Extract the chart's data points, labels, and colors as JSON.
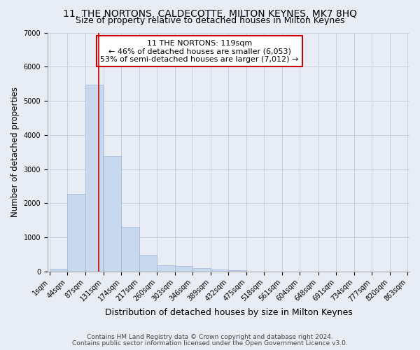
{
  "title": "11, THE NORTONS, CALDECOTTE, MILTON KEYNES, MK7 8HQ",
  "subtitle": "Size of property relative to detached houses in Milton Keynes",
  "xlabel": "Distribution of detached houses by size in Milton Keynes",
  "ylabel": "Number of detached properties",
  "footnote1": "Contains HM Land Registry data © Crown copyright and database right 2024.",
  "footnote2": "Contains public sector information licensed under the Open Government Licence v3.0.",
  "annotation_line1": "11 THE NORTONS: 119sqm",
  "annotation_line2": "← 46% of detached houses are smaller (6,053)",
  "annotation_line3": "53% of semi-detached houses are larger (7,012) →",
  "property_size": 119,
  "bin_edges": [
    1,
    44,
    87,
    131,
    174,
    217,
    260,
    303,
    346,
    389,
    432,
    475,
    518,
    561,
    604,
    648,
    691,
    734,
    777,
    820,
    863
  ],
  "bar_heights": [
    75,
    2280,
    5470,
    3390,
    1310,
    490,
    190,
    170,
    90,
    55,
    45,
    0,
    0,
    0,
    0,
    0,
    0,
    0,
    0,
    0
  ],
  "bar_color": "#c8d8ee",
  "bar_edge_color": "#a0b8d8",
  "vline_color": "#cc0000",
  "ylim": [
    0,
    7000
  ],
  "yticks": [
    0,
    1000,
    2000,
    3000,
    4000,
    5000,
    6000,
    7000
  ],
  "grid_color": "#c8d0e0",
  "bg_color": "#e8edf5",
  "title_fontsize": 10,
  "subtitle_fontsize": 9,
  "ylabel_fontsize": 8.5,
  "xlabel_fontsize": 9,
  "tick_fontsize": 7,
  "annot_fontsize": 8,
  "footnote_fontsize": 6.5
}
